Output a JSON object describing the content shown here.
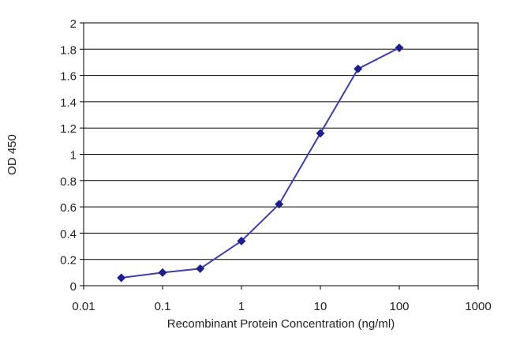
{
  "chart_data": {
    "type": "line",
    "title": "",
    "xlabel": "Recombinant Protein Concentration (ng/ml)",
    "ylabel": "OD 450",
    "xscale": "log",
    "xlim": [
      0.01,
      1000
    ],
    "ylim": [
      0,
      2
    ],
    "xticks": [
      "0.01",
      "0.1",
      "1",
      "10",
      "100",
      "1000"
    ],
    "yticks": [
      "0",
      "0.2",
      "0.4",
      "0.6",
      "0.8",
      "1",
      "1.2",
      "1.4",
      "1.6",
      "1.8",
      "2"
    ],
    "grid": "horizontal",
    "legend": "none",
    "series": [
      {
        "x": [
          0.03,
          0.1,
          0.3,
          1,
          3,
          10,
          30,
          100
        ],
        "y": [
          0.06,
          0.1,
          0.13,
          0.34,
          0.62,
          1.16,
          1.65,
          1.81
        ]
      }
    ],
    "colors": {
      "line": "#3b3fa8",
      "marker": "#1a1f8c",
      "grid": "#000000",
      "axis": "#000000"
    }
  }
}
